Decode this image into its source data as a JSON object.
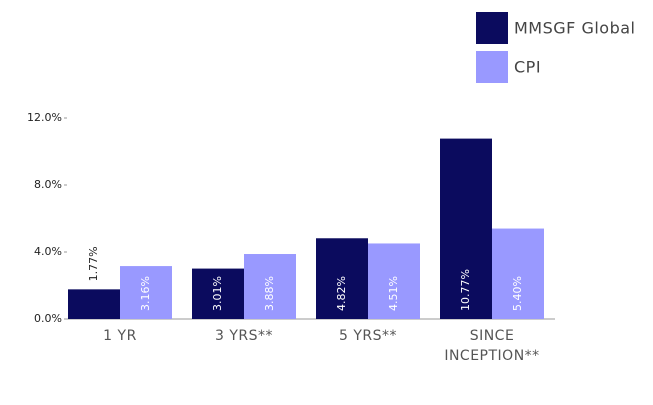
{
  "chart_data": {
    "type": "bar",
    "categories": [
      "1 YR",
      "3 YRS**",
      "5 YRS**",
      "SINCE INCEPTION**"
    ],
    "series": [
      {
        "name": "MMSGF Global",
        "color": "#0b0b5e",
        "values": [
          1.77,
          3.01,
          4.82,
          10.77
        ],
        "value_labels": [
          "1.77%",
          "3.01%",
          "4.82%",
          "10.77%"
        ]
      },
      {
        "name": "CPI",
        "color": "#9999ff",
        "values": [
          3.16,
          3.88,
          4.51,
          5.4
        ],
        "value_labels": [
          "3.16%",
          "3.88%",
          "4.51%",
          "5.40%"
        ]
      }
    ],
    "ylim": [
      0,
      12
    ],
    "yticks": [
      {
        "value": 0,
        "label": "0.0%"
      },
      {
        "value": 4,
        "label": "4.0%"
      },
      {
        "value": 8,
        "label": "8.0%"
      },
      {
        "value": 12,
        "label": "12.0%"
      }
    ],
    "grid": false,
    "legend": "top-right"
  }
}
